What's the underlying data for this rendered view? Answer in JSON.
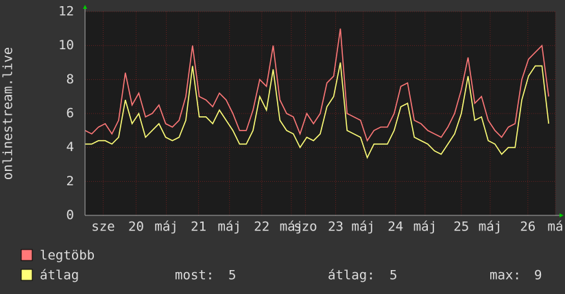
{
  "chart_data": {
    "type": "line",
    "y_label": "onlinestream.live",
    "x": [
      0,
      1,
      2,
      3,
      4,
      5,
      6,
      7,
      8,
      9,
      10,
      11,
      12,
      13,
      14,
      15,
      16,
      17,
      18,
      19,
      20,
      21,
      22,
      23,
      24,
      25,
      26,
      27,
      28,
      29,
      30,
      31,
      32,
      33,
      34,
      35,
      36,
      37,
      38,
      39,
      40,
      41,
      42,
      43,
      44,
      45,
      46,
      47,
      48,
      49,
      50,
      51,
      52,
      53,
      54,
      55,
      56,
      57,
      58,
      59,
      60,
      61,
      62,
      63,
      64,
      65,
      66,
      67,
      68,
      69
    ],
    "xlim": [
      0,
      70
    ],
    "xticks": [
      {
        "value": 2.7,
        "label": "sze"
      },
      {
        "value": 7.6,
        "label": "20"
      },
      {
        "value": 12.1,
        "label": "máj"
      },
      {
        "value": 16.9,
        "label": "21"
      },
      {
        "value": 21.5,
        "label": "máj"
      },
      {
        "value": 26.3,
        "label": "22"
      },
      {
        "value": 30.7,
        "label": "máj"
      },
      {
        "value": 32.8,
        "label": "szo"
      },
      {
        "value": 37.3,
        "label": "23"
      },
      {
        "value": 41.4,
        "label": "máj"
      },
      {
        "value": 46.2,
        "label": "24"
      },
      {
        "value": 50.6,
        "label": "máj"
      },
      {
        "value": 56.0,
        "label": "25"
      },
      {
        "value": 60.3,
        "label": "máj"
      },
      {
        "value": 65.9,
        "label": "26"
      },
      {
        "value": 70.0,
        "label": "má"
      }
    ],
    "ylim": [
      0,
      12
    ],
    "yticks": [
      0,
      2,
      4,
      6,
      8,
      10,
      12
    ],
    "grid": true,
    "series": [
      {
        "name": "legtöbb",
        "color": "#ff7878",
        "values": [
          5,
          4.8,
          5.2,
          5.4,
          4.8,
          5.6,
          8.4,
          6.5,
          7.2,
          5.8,
          6,
          6.5,
          5.4,
          5.2,
          5.6,
          7,
          10,
          7,
          6.8,
          6.4,
          7.2,
          6.8,
          6,
          5,
          5,
          6.2,
          8,
          7.6,
          10,
          6.8,
          6,
          5.8,
          4.8,
          6,
          5.4,
          6,
          7.8,
          8.2,
          11,
          6,
          5.8,
          5.6,
          4.4,
          5,
          5.2,
          5.2,
          6,
          7.6,
          7.8,
          5.6,
          5.4,
          5,
          4.8,
          4.6,
          5.2,
          6,
          7.4,
          9.3,
          6.6,
          7,
          5.6,
          5,
          4.6,
          5.2,
          5.4,
          8,
          9.2,
          9.6,
          10,
          7
        ]
      },
      {
        "name": "átlag",
        "color": "#ffff78",
        "values": [
          4.2,
          4.2,
          4.4,
          4.4,
          4.2,
          4.6,
          6.8,
          5.4,
          6,
          4.6,
          5,
          5.4,
          4.6,
          4.4,
          4.6,
          5.6,
          8.8,
          5.8,
          5.8,
          5.4,
          6.2,
          5.6,
          5,
          4.2,
          4.2,
          5,
          7,
          6.2,
          8.6,
          5.6,
          5,
          4.8,
          4,
          4.6,
          4.4,
          4.8,
          6.4,
          7,
          9,
          5,
          4.8,
          4.6,
          3.4,
          4.2,
          4.2,
          4.2,
          5,
          6.4,
          6.6,
          4.6,
          4.4,
          4.2,
          3.8,
          3.6,
          4.2,
          4.8,
          6,
          8.2,
          5.6,
          5.8,
          4.4,
          4.2,
          3.6,
          4,
          4,
          6.8,
          8.2,
          8.8,
          8.8,
          5.4
        ]
      }
    ],
    "stats": [
      {
        "label": "most:",
        "value": 5
      },
      {
        "label": "átlag:",
        "value": 5
      },
      {
        "label": "max:",
        "value": 9
      }
    ]
  }
}
